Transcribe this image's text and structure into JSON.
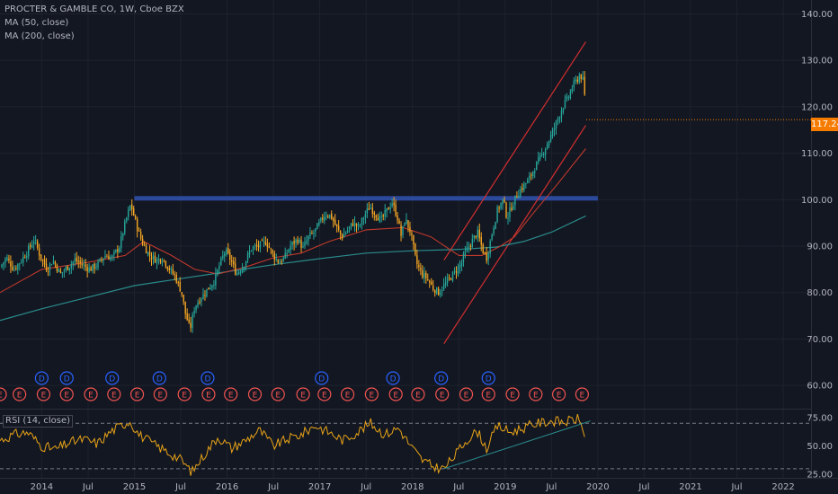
{
  "header": {
    "title": "PROCTER & GAMBLE CO, 1W, Cboe BZX",
    "ma50_label": "MA (50, close)",
    "ma200_label": "MA (200, close)"
  },
  "rsi_pane": {
    "label": "RSI (14, close)"
  },
  "last_price": "117.24",
  "colors": {
    "background": "#131722",
    "up_candle": "#26a69a",
    "down_candle": "#f5a623",
    "ma50": "#c0392b",
    "ma200": "#2a8c8c",
    "resistance": "#2f4fa8",
    "channel": "#d32f2f",
    "rsi": "#e8a317",
    "price_badge": "#f57c00",
    "dividend": "#2962ff",
    "earnings": "#ef5350"
  },
  "chart_data": [
    {
      "type": "candlestick",
      "title": "PROCTER & GAMBLE CO, 1W, Cboe BZX",
      "x_ticks": [
        "2014",
        "Jul",
        "2015",
        "Jul",
        "2016",
        "Jul",
        "2017",
        "Jul",
        "2018",
        "Jul",
        "2019",
        "Jul",
        "2020",
        "Jul",
        "2021",
        "Jul",
        "2022"
      ],
      "x_tick_years": [
        2014.0,
        2014.5,
        2015.0,
        2015.5,
        2016.0,
        2016.5,
        2017.0,
        2017.5,
        2018.0,
        2018.5,
        2019.0,
        2019.5,
        2020.0,
        2020.5,
        2021.0,
        2021.5,
        2022.0
      ],
      "x_range": [
        2013.55,
        2022.3
      ],
      "y_ticks": [
        "140.00",
        "130.00",
        "120.00",
        "110.00",
        "100.00",
        "90.00",
        "80.00",
        "70.00",
        "60.00"
      ],
      "y_range": [
        55,
        143
      ],
      "close_path": [
        [
          2013.55,
          85.5
        ],
        [
          2013.62,
          87.5
        ],
        [
          2013.7,
          85.0
        ],
        [
          2013.78,
          87.0
        ],
        [
          2013.85,
          89.0
        ],
        [
          2013.92,
          91.5
        ],
        [
          2013.98,
          88.0
        ],
        [
          2014.06,
          85.0
        ],
        [
          2014.12,
          87.0
        ],
        [
          2014.2,
          84.0
        ],
        [
          2014.28,
          85.5
        ],
        [
          2014.36,
          87.0
        ],
        [
          2014.44,
          86.0
        ],
        [
          2014.52,
          85.0
        ],
        [
          2014.6,
          86.0
        ],
        [
          2014.68,
          88.0
        ],
        [
          2014.76,
          87.5
        ],
        [
          2014.84,
          90.0
        ],
        [
          2014.9,
          95.0
        ],
        [
          2014.96,
          99.0
        ],
        [
          2015.03,
          94.0
        ],
        [
          2015.08,
          91.0
        ],
        [
          2015.16,
          88.0
        ],
        [
          2015.24,
          87.0
        ],
        [
          2015.3,
          87.5
        ],
        [
          2015.38,
          85.0
        ],
        [
          2015.44,
          83.5
        ],
        [
          2015.51,
          80.0
        ],
        [
          2015.55,
          75.5
        ],
        [
          2015.6,
          72.0
        ],
        [
          2015.65,
          77.0
        ],
        [
          2015.72,
          79.0
        ],
        [
          2015.8,
          81.0
        ],
        [
          2015.86,
          82.5
        ],
        [
          2015.92,
          86.0
        ],
        [
          2015.98,
          89.0
        ],
        [
          2016.04,
          87.0
        ],
        [
          2016.1,
          84.0
        ],
        [
          2016.18,
          86.0
        ],
        [
          2016.26,
          89.5
        ],
        [
          2016.34,
          90.0
        ],
        [
          2016.42,
          91.0
        ],
        [
          2016.5,
          88.0
        ],
        [
          2016.56,
          86.5
        ],
        [
          2016.62,
          87.5
        ],
        [
          2016.68,
          90.0
        ],
        [
          2016.76,
          91.5
        ],
        [
          2016.82,
          89.5
        ],
        [
          2016.88,
          92.0
        ],
        [
          2016.94,
          93.0
        ],
        [
          2017.0,
          95.0
        ],
        [
          2017.06,
          97.0
        ],
        [
          2017.12,
          96.5
        ],
        [
          2017.18,
          94.0
        ],
        [
          2017.24,
          92.0
        ],
        [
          2017.3,
          93.5
        ],
        [
          2017.36,
          95.0
        ],
        [
          2017.42,
          94.0
        ],
        [
          2017.48,
          96.5
        ],
        [
          2017.54,
          98.5
        ],
        [
          2017.6,
          97.0
        ],
        [
          2017.66,
          95.5
        ],
        [
          2017.72,
          97.5
        ],
        [
          2017.78,
          99.5
        ],
        [
          2017.84,
          96.0
        ],
        [
          2017.88,
          92.0
        ],
        [
          2017.92,
          96.0
        ],
        [
          2017.98,
          93.0
        ],
        [
          2018.04,
          86.5
        ],
        [
          2018.1,
          84.0
        ],
        [
          2018.16,
          83.0
        ],
        [
          2018.22,
          81.0
        ],
        [
          2018.28,
          80.0
        ],
        [
          2018.34,
          81.5
        ],
        [
          2018.4,
          83.0
        ],
        [
          2018.46,
          84.5
        ],
        [
          2018.52,
          86.0
        ],
        [
          2018.58,
          89.0
        ],
        [
          2018.64,
          91.0
        ],
        [
          2018.7,
          93.0
        ],
        [
          2018.76,
          89.0
        ],
        [
          2018.8,
          87.5
        ],
        [
          2018.86,
          93.0
        ],
        [
          2018.92,
          98.0
        ],
        [
          2018.98,
          100.0
        ],
        [
          2019.02,
          96.0
        ],
        [
          2019.08,
          99.0
        ],
        [
          2019.14,
          101.5
        ],
        [
          2019.2,
          103.0
        ],
        [
          2019.26,
          104.5
        ],
        [
          2019.32,
          107.0
        ],
        [
          2019.38,
          109.0
        ],
        [
          2019.44,
          111.5
        ],
        [
          2019.5,
          114.0
        ],
        [
          2019.56,
          117.0
        ],
        [
          2019.62,
          120.0
        ],
        [
          2019.68,
          122.0
        ],
        [
          2019.73,
          124.5
        ],
        [
          2019.78,
          126.0
        ],
        [
          2019.81,
          127.0
        ],
        [
          2019.84,
          125.5
        ],
        [
          2019.86,
          122.0
        ],
        [
          2019.875,
          117.24
        ]
      ],
      "ma50_path": [
        [
          2013.55,
          80.0
        ],
        [
          2014.0,
          85.0
        ],
        [
          2014.5,
          86.5
        ],
        [
          2014.9,
          88.0
        ],
        [
          2015.1,
          91.0
        ],
        [
          2015.4,
          88.0
        ],
        [
          2015.65,
          85.0
        ],
        [
          2015.9,
          84.0
        ],
        [
          2016.2,
          85.5
        ],
        [
          2016.5,
          87.5
        ],
        [
          2016.8,
          88.5
        ],
        [
          2017.1,
          91.0
        ],
        [
          2017.5,
          93.5
        ],
        [
          2017.9,
          94.0
        ],
        [
          2018.2,
          92.0
        ],
        [
          2018.5,
          88.0
        ],
        [
          2018.75,
          88.0
        ],
        [
          2018.95,
          90.0
        ],
        [
          2019.1,
          92.0
        ],
        [
          2019.3,
          97.0
        ],
        [
          2019.55,
          103.0
        ],
        [
          2019.87,
          111.0
        ]
      ],
      "ma200_path": [
        [
          2013.55,
          74.0
        ],
        [
          2014.0,
          76.5
        ],
        [
          2014.5,
          79.0
        ],
        [
          2015.0,
          81.5
        ],
        [
          2015.5,
          83.0
        ],
        [
          2016.0,
          84.5
        ],
        [
          2016.5,
          86.0
        ],
        [
          2017.0,
          87.3
        ],
        [
          2017.5,
          88.5
        ],
        [
          2018.0,
          89.0
        ],
        [
          2018.5,
          89.3
        ],
        [
          2018.9,
          89.8
        ],
        [
          2019.2,
          91.0
        ],
        [
          2019.5,
          93.0
        ],
        [
          2019.87,
          96.5
        ]
      ],
      "resistance_level": 100.3,
      "resistance_x": [
        2015.0,
        2020.0
      ],
      "channel_upper": [
        [
          2018.34,
          87.0
        ],
        [
          2019.87,
          134.0
        ]
      ],
      "channel_lower": [
        [
          2018.34,
          69.0
        ],
        [
          2019.87,
          116.0
        ]
      ],
      "last_price": 117.24,
      "dividend_years": [
        2014.0,
        2014.27,
        2014.76,
        2015.27,
        2015.79,
        2017.02,
        2017.79,
        2018.31,
        2018.82
      ],
      "earnings_years": [
        2013.55,
        2013.76,
        2014.02,
        2014.27,
        2014.53,
        2014.78,
        2015.03,
        2015.28,
        2015.54,
        2015.8,
        2016.04,
        2016.3,
        2016.55,
        2016.82,
        2017.05,
        2017.3,
        2017.56,
        2017.82,
        2018.06,
        2018.32,
        2018.58,
        2018.82,
        2019.08,
        2019.33,
        2019.58,
        2019.83
      ],
      "dividend_label": "D",
      "earnings_label": "E"
    },
    {
      "type": "line",
      "title": "RSI (14, close)",
      "y_ticks": [
        "75.00",
        "50.00",
        "25.00"
      ],
      "y_range": [
        22,
        82
      ],
      "reference_lines": [
        70,
        30
      ],
      "values_path": [
        [
          2013.55,
          55
        ],
        [
          2013.7,
          60
        ],
        [
          2013.85,
          62
        ],
        [
          2014.0,
          50
        ],
        [
          2014.15,
          47
        ],
        [
          2014.3,
          53
        ],
        [
          2014.45,
          56
        ],
        [
          2014.6,
          52
        ],
        [
          2014.75,
          63
        ],
        [
          2014.95,
          72
        ],
        [
          2015.05,
          60
        ],
        [
          2015.2,
          52
        ],
        [
          2015.35,
          45
        ],
        [
          2015.5,
          38
        ],
        [
          2015.62,
          27
        ],
        [
          2015.75,
          42
        ],
        [
          2015.9,
          58
        ],
        [
          2016.05,
          48
        ],
        [
          2016.2,
          55
        ],
        [
          2016.35,
          64
        ],
        [
          2016.5,
          50
        ],
        [
          2016.65,
          56
        ],
        [
          2016.8,
          60
        ],
        [
          2016.95,
          68
        ],
        [
          2017.1,
          62
        ],
        [
          2017.25,
          55
        ],
        [
          2017.4,
          62
        ],
        [
          2017.55,
          70
        ],
        [
          2017.7,
          60
        ],
        [
          2017.85,
          66
        ],
        [
          2017.98,
          50
        ],
        [
          2018.1,
          38
        ],
        [
          2018.22,
          32
        ],
        [
          2018.34,
          30
        ],
        [
          2018.46,
          42
        ],
        [
          2018.58,
          55
        ],
        [
          2018.7,
          63
        ],
        [
          2018.8,
          48
        ],
        [
          2018.92,
          68
        ],
        [
          2019.05,
          62
        ],
        [
          2019.2,
          66
        ],
        [
          2019.35,
          70
        ],
        [
          2019.5,
          72
        ],
        [
          2019.65,
          71
        ],
        [
          2019.78,
          74
        ],
        [
          2019.84,
          66
        ],
        [
          2019.875,
          53
        ]
      ]
    }
  ]
}
